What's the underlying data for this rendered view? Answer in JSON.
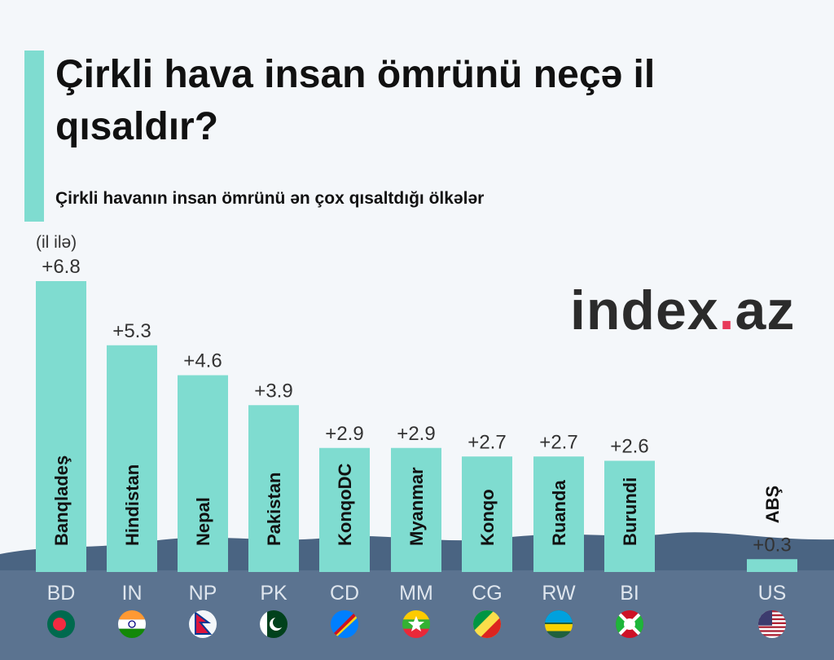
{
  "title": "Çirkli hava insan ömrünü neçə il qısaldır?",
  "subtitle": "Çirkli havanın insan ömrünü ən çox qısaltdığı ölkələr",
  "unit": "(il ilə)",
  "logo": {
    "main": "index",
    "dot": ".",
    "tld": "az"
  },
  "colors": {
    "bar": "#7fdcd0",
    "ground": "#5b7390",
    "hill": "#4a6482",
    "accent": "#7fdcd0",
    "logo_dot": "#e8395a"
  },
  "chart_data": {
    "type": "bar",
    "title": "Çirkli hava insan ömrünü neçə il qısaldır?",
    "subtitle": "Çirkli havanın insan ömrünü ən çox qısaltdığı ölkələr",
    "ylabel": "(il ilə)",
    "categories": [
      "Banqladeş",
      "Hindistan",
      "Nepal",
      "Pakistan",
      "KonqoDC",
      "Myanmar",
      "Konqo",
      "Ruanda",
      "Burundi",
      "ABŞ"
    ],
    "codes": [
      "BD",
      "IN",
      "NP",
      "PK",
      "CD",
      "MM",
      "CG",
      "RW",
      "BI",
      "US"
    ],
    "labels": [
      "+6.8",
      "+5.3",
      "+4.6",
      "+3.9",
      "+2.9",
      "+2.9",
      "+2.7",
      "+2.7",
      "+2.6",
      "+0.3"
    ],
    "values": [
      6.8,
      5.3,
      4.6,
      3.9,
      2.9,
      2.9,
      2.7,
      2.7,
      2.6,
      0.3
    ],
    "flags": [
      "flag-bangladesh-icon",
      "flag-india-icon",
      "flag-nepal-icon",
      "flag-pakistan-icon",
      "flag-dr-congo-icon",
      "flag-myanmar-icon",
      "flag-congo-icon",
      "flag-rwanda-icon",
      "flag-burundi-icon",
      "flag-usa-icon"
    ],
    "grid": false
  }
}
